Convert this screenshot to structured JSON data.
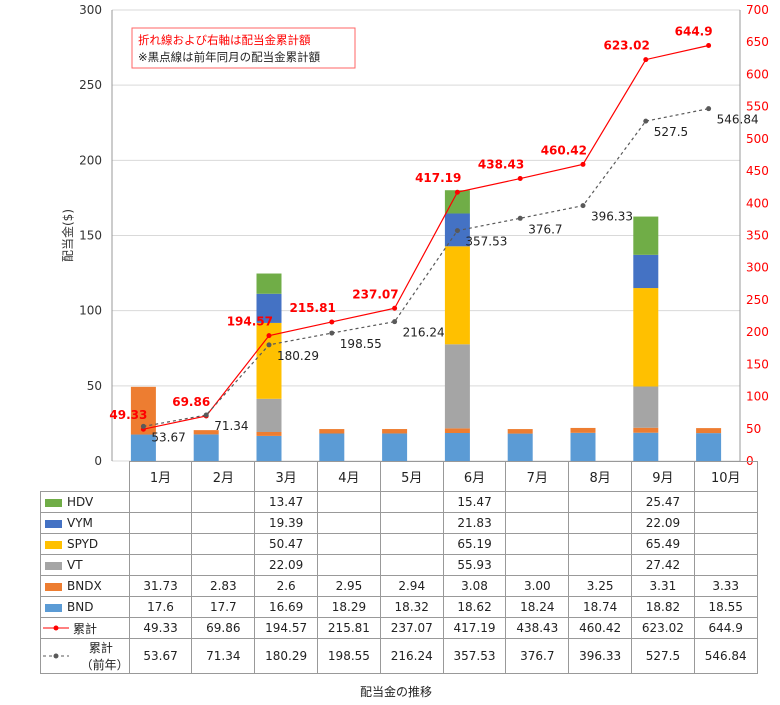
{
  "chart_data": {
    "type": "bar",
    "stacked": true,
    "title": "配当金の推移",
    "ylabel": "配当金($)",
    "ylim": [
      0,
      300
    ],
    "y_ticks": [
      0,
      50,
      100,
      150,
      200,
      250,
      300
    ],
    "y2lim": [
      0,
      700
    ],
    "y2_ticks": [
      0,
      50,
      100,
      150,
      200,
      250,
      300,
      350,
      400,
      450,
      500,
      550,
      600,
      650,
      700
    ],
    "categories": [
      "1月",
      "2月",
      "3月",
      "4月",
      "5月",
      "6月",
      "7月",
      "8月",
      "9月",
      "10月"
    ],
    "series": [
      {
        "name": "BND",
        "color": "#5b9bd5",
        "values": [
          "17.6",
          "17.7",
          "16.69",
          "18.29",
          "18.32",
          "18.62",
          "18.24",
          "18.74",
          "18.82",
          "18.55"
        ]
      },
      {
        "name": "BNDX",
        "color": "#ed7d31",
        "values": [
          "31.73",
          "2.83",
          "2.6",
          "2.95",
          "2.94",
          "3.08",
          "3.00",
          "3.25",
          "3.31",
          "3.33"
        ]
      },
      {
        "name": "VT",
        "color": "#a5a5a5",
        "values": [
          "",
          "",
          "22.09",
          "",
          "",
          "55.93",
          "",
          "",
          "27.42",
          ""
        ]
      },
      {
        "name": "SPYD",
        "color": "#ffc000",
        "values": [
          "",
          "",
          "50.47",
          "",
          "",
          "65.19",
          "",
          "",
          "65.49",
          ""
        ]
      },
      {
        "name": "VYM",
        "color": "#4472c4",
        "values": [
          "",
          "",
          "19.39",
          "",
          "",
          "21.83",
          "",
          "",
          "22.09",
          ""
        ]
      },
      {
        "name": "HDV",
        "color": "#70ad47",
        "values": [
          "",
          "",
          "13.47",
          "",
          "",
          "15.47",
          "",
          "",
          "25.47",
          ""
        ]
      }
    ],
    "lines": [
      {
        "name": "累計",
        "axis": "right",
        "color": "#ff0000",
        "style": "solid",
        "values": [
          "49.33",
          "69.86",
          "194.57",
          "215.81",
          "237.07",
          "417.19",
          "438.43",
          "460.42",
          "623.02",
          "644.9"
        ]
      },
      {
        "name": "累計（前年）",
        "axis": "right",
        "color": "#595959",
        "style": "dashed",
        "values": [
          "53.67",
          "71.34",
          "180.29",
          "198.55",
          "216.24",
          "357.53",
          "376.7",
          "396.33",
          "527.5",
          "546.84"
        ]
      }
    ],
    "annotation": {
      "line1": "折れ線および右軸は配当金累計額",
      "line2": "※黒点線は前年同月の配当金累計額"
    },
    "legend_placement": "data-table-below"
  }
}
